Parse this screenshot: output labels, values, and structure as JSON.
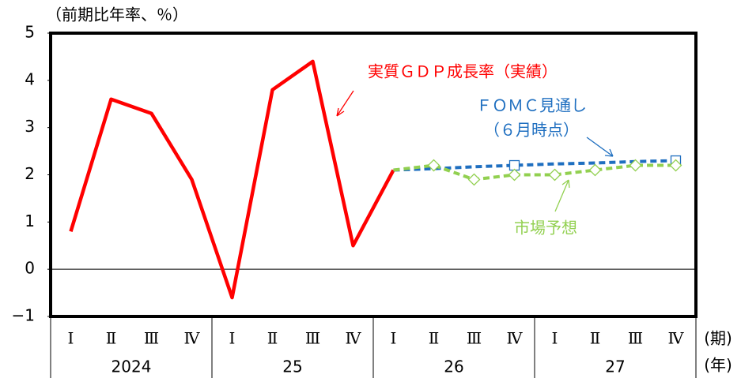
{
  "chart_data": {
    "type": "line",
    "unit_label": "（前期比年率、％）",
    "categories": [
      "Ⅰ",
      "Ⅱ",
      "Ⅲ",
      "Ⅳ",
      "Ⅰ",
      "Ⅱ",
      "Ⅲ",
      "Ⅳ",
      "Ⅰ",
      "Ⅱ",
      "Ⅲ",
      "Ⅳ",
      "Ⅰ",
      "Ⅱ",
      "Ⅲ",
      "Ⅳ"
    ],
    "year_labels": [
      "2024",
      "25",
      "26",
      "27"
    ],
    "x_label": "(期)",
    "year_axis_label": "(年)",
    "ylim": [
      -1,
      5
    ],
    "yticks": [
      {
        "value": -1,
        "label": "−1"
      },
      0,
      1,
      2,
      3,
      4,
      5
    ],
    "series": [
      {
        "name": "実質ＧＤＰ成長率（実績）",
        "color": "#ff0000",
        "style": "solid",
        "values": [
          0.8,
          3.6,
          3.3,
          1.9,
          -0.6,
          3.8,
          4.4,
          0.5,
          2.1,
          null,
          null,
          null,
          null,
          null,
          null,
          null
        ]
      },
      {
        "name": "ＦＯＭＣ見通し",
        "name2": "（６月時点）",
        "color": "#1f6fc0",
        "style": "dashed",
        "marker": "square",
        "values": [
          null,
          null,
          null,
          null,
          null,
          null,
          null,
          null,
          2.1,
          2.13,
          2.17,
          2.2,
          2.23,
          2.25,
          2.28,
          2.3
        ],
        "marker_indices": [
          11,
          15
        ]
      },
      {
        "name": "市場予想",
        "color": "#92d050",
        "style": "dashed",
        "marker": "diamond",
        "values": [
          null,
          null,
          null,
          null,
          null,
          null,
          null,
          null,
          2.1,
          2.2,
          1.9,
          2.0,
          2.0,
          2.1,
          2.2,
          2.2
        ],
        "marker_indices": [
          9,
          10,
          11,
          12,
          13,
          14,
          15
        ]
      }
    ]
  }
}
